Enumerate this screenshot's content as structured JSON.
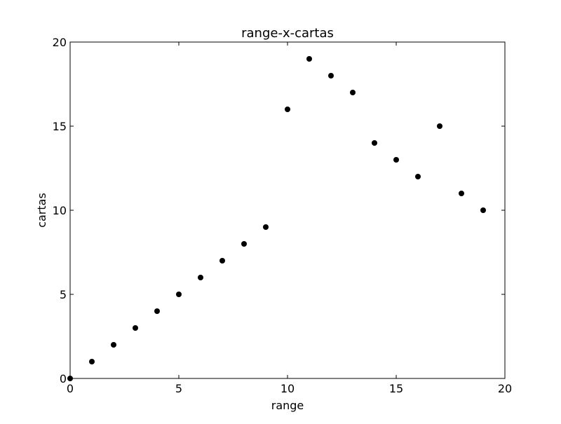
{
  "chart_data": {
    "type": "scatter",
    "title": "range-x-cartas",
    "xlabel": "range",
    "ylabel": "cartas",
    "xlim": [
      0,
      20
    ],
    "ylim": [
      0,
      20
    ],
    "xticks": [
      0,
      5,
      10,
      15,
      20
    ],
    "yticks": [
      0,
      5,
      10,
      15,
      20
    ],
    "xtick_labels": [
      "0",
      "5",
      "10",
      "15",
      "20"
    ],
    "ytick_labels": [
      "0",
      "5",
      "10",
      "15",
      "20"
    ],
    "grid": false,
    "legend": "none",
    "x": [
      0,
      1,
      2,
      3,
      4,
      5,
      6,
      7,
      8,
      9,
      10,
      11,
      12,
      13,
      14,
      15,
      16,
      17,
      18,
      19
    ],
    "y": [
      0,
      1,
      2,
      3,
      4,
      5,
      6,
      7,
      8,
      9,
      16,
      19,
      18,
      17,
      14,
      13,
      12,
      15,
      11,
      10
    ],
    "marker_color": "#000000"
  }
}
